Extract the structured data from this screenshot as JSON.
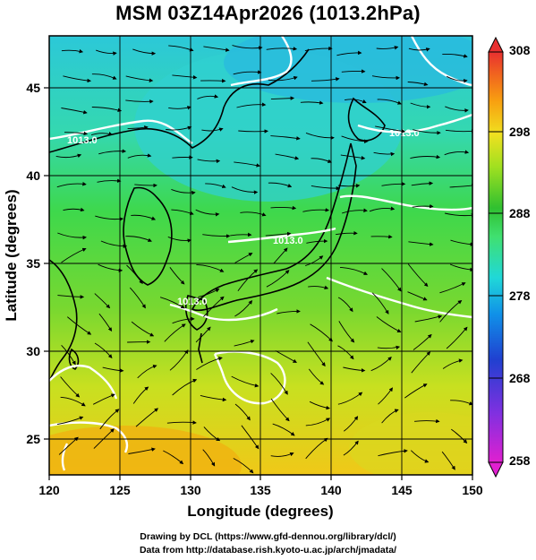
{
  "title": "MSM 03Z14Apr2026 (1013.2hPa)",
  "x_axis": {
    "label": "Longitude (degrees)",
    "range": [
      120,
      150
    ],
    "ticks": [
      "120",
      "125",
      "130",
      "135",
      "140",
      "145",
      "150"
    ]
  },
  "y_axis": {
    "label": "Latitude  (degrees)",
    "range": [
      22.5,
      47.5
    ],
    "ticks": [
      "25",
      "30",
      "35",
      "40",
      "45"
    ]
  },
  "colorbar": {
    "range": [
      258,
      308
    ],
    "ticks": [
      "308",
      "298",
      "288",
      "278",
      "268",
      "258"
    ],
    "colors": [
      "#e020d0",
      "#8030e0",
      "#2040d0",
      "#1090e8",
      "#20d8d8",
      "#40e070",
      "#30c030",
      "#a0e020",
      "#f0e020",
      "#f8a010",
      "#f06020",
      "#e83030"
    ]
  },
  "contour_label": "1013.0",
  "credits": [
    "Drawing by DCL (https://www.gfd-dennou.org/library/dcl/)",
    "Data from http://database.rish.kyoto-u.ac.jp/arch/jmadata/"
  ]
}
